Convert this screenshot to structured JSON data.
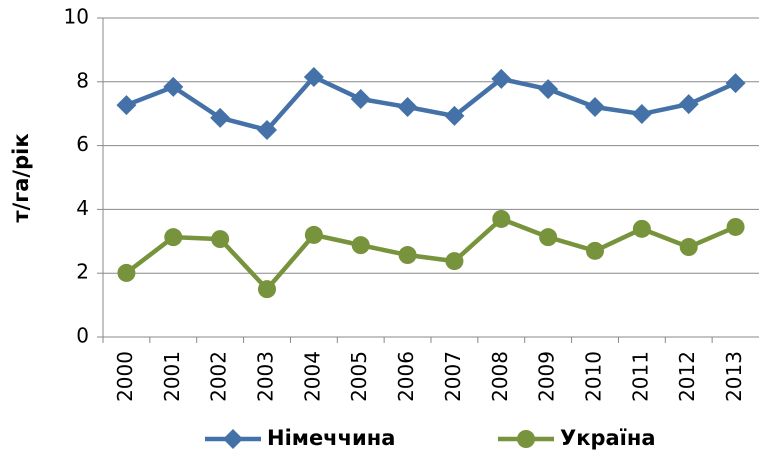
{
  "chart_data": {
    "type": "line",
    "y_label": "т/га/рік",
    "categories": [
      "2000",
      "2001",
      "2002",
      "2003",
      "2004",
      "2005",
      "2006",
      "2007",
      "2008",
      "2009",
      "2010",
      "2011",
      "2012",
      "2013"
    ],
    "series": [
      {
        "name": "Німеччина",
        "color": "#4472a8",
        "marker": "diamond",
        "values": [
          7.27,
          7.84,
          6.87,
          6.49,
          8.15,
          7.46,
          7.21,
          6.93,
          8.09,
          7.77,
          7.21,
          6.99,
          7.3,
          7.96
        ]
      },
      {
        "name": "Україна",
        "color": "#77933c",
        "marker": "circle",
        "values": [
          2.01,
          3.13,
          3.07,
          1.5,
          3.2,
          2.88,
          2.57,
          2.38,
          3.7,
          3.13,
          2.7,
          3.39,
          2.82,
          3.45
        ]
      }
    ],
    "ylim": [
      0,
      10
    ],
    "yticks": [
      0,
      2,
      4,
      6,
      8,
      10
    ],
    "grid": true,
    "legend": "bottom"
  }
}
